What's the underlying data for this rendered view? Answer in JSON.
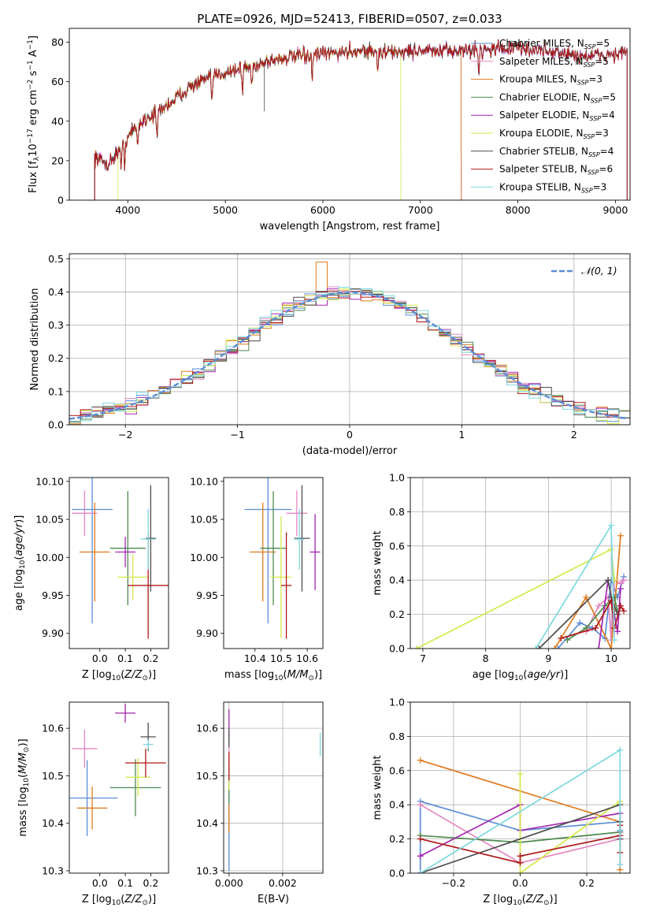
{
  "figure": {
    "title": "PLATE=0926, MJD=52413, FIBERID=0507, z=0.033"
  },
  "colors": {
    "Chabrier MILES": "#5b8dd6",
    "Salpeter MILES": "#e487c2",
    "Kroupa MILES": "#e07b1f",
    "Chabrier ELODIE": "#4e8a4e",
    "Salpeter ELODIE": "#a326b0",
    "Kroupa ELODIE": "#d4e84a",
    "Chabrier STELIB": "#4d4d4d",
    "Salpeter STELIB": "#b01818",
    "Kroupa STELIB": "#7fd7e0"
  },
  "chart_data": [
    {
      "id": "spectrum",
      "type": "line",
      "title": "PLATE=0926, MJD=52413, FIBERID=0507, z=0.033",
      "xlabel": "wavelength [Angstrom, rest frame]",
      "ylabel": "Flux [f_λ10^-17 erg cm^-2 s^-1 A^-1]",
      "xlim": [
        3400,
        9150
      ],
      "ylim": [
        0,
        87
      ],
      "xticks": [
        4000,
        5000,
        6000,
        7000,
        8000,
        9000
      ],
      "yticks": [
        0,
        20,
        40,
        60,
        80
      ],
      "grid": false,
      "legend_position": "top-right",
      "legend": [
        {
          "label": "Chabrier MILES, N_SSP=5",
          "base": "Chabrier MILES, N",
          "sub": "SSP",
          "tail": "=5"
        },
        {
          "label": "Salpeter MILES, N_SSP=5",
          "base": "Salpeter MILES, N",
          "sub": "SSP",
          "tail": "=5"
        },
        {
          "label": "Kroupa MILES, N_SSP=3",
          "base": "Kroupa MILES, N",
          "sub": "SSP",
          "tail": "=3"
        },
        {
          "label": "Chabrier ELODIE, N_SSP=5",
          "base": "Chabrier ELODIE, N",
          "sub": "SSP",
          "tail": "=5"
        },
        {
          "label": "Salpeter ELODIE, N_SSP=4",
          "base": "Salpeter ELODIE, N",
          "sub": "SSP",
          "tail": "=4"
        },
        {
          "label": "Kroupa ELODIE, N_SSP=3",
          "base": "Kroupa ELODIE, N",
          "sub": "SSP",
          "tail": "=3"
        },
        {
          "label": "Chabrier STELIB, N_SSP=4",
          "base": "Chabrier STELIB, N",
          "sub": "SSP",
          "tail": "=4"
        },
        {
          "label": "Salpeter STELIB, N_SSP=6",
          "base": "Salpeter STELIB, N",
          "sub": "SSP",
          "tail": "=6"
        },
        {
          "label": "Kroupa STELIB, N_SSP=3",
          "base": "Kroupa STELIB, N",
          "sub": "SSP",
          "tail": "=3"
        }
      ],
      "continuum": [
        [
          3660,
          22
        ],
        [
          3800,
          18
        ],
        [
          3900,
          25
        ],
        [
          4000,
          32
        ],
        [
          4100,
          38
        ],
        [
          4200,
          42
        ],
        [
          4300,
          44
        ],
        [
          4400,
          48
        ],
        [
          4500,
          52
        ],
        [
          4600,
          56
        ],
        [
          4700,
          59
        ],
        [
          4800,
          61
        ],
        [
          4900,
          63
        ],
        [
          5000,
          65
        ],
        [
          5100,
          66
        ],
        [
          5200,
          67
        ],
        [
          5300,
          68
        ],
        [
          5400,
          70
        ],
        [
          5500,
          71
        ],
        [
          5600,
          72
        ],
        [
          5800,
          73
        ],
        [
          6000,
          74
        ],
        [
          6200,
          75
        ],
        [
          6400,
          76
        ],
        [
          6600,
          75
        ],
        [
          6800,
          75
        ],
        [
          7000,
          76
        ],
        [
          7200,
          75
        ],
        [
          7400,
          76
        ],
        [
          7600,
          76
        ],
        [
          7800,
          77
        ],
        [
          8000,
          77
        ],
        [
          8200,
          76
        ],
        [
          8400,
          75
        ],
        [
          8600,
          73
        ],
        [
          8800,
          73
        ],
        [
          9000,
          74
        ],
        [
          9120,
          75
        ]
      ],
      "model_ranges": {
        "Chabrier MILES": [
          3660,
          7420
        ],
        "Salpeter MILES": [
          3660,
          7420
        ],
        "Kroupa MILES": [
          3660,
          7420
        ],
        "Kroupa ELODIE": [
          3900,
          6800
        ],
        "Chabrier ELODIE": [
          3660,
          9120
        ],
        "Salpeter ELODIE": [
          3660,
          9120
        ],
        "Chabrier STELIB": [
          3660,
          9120
        ],
        "Salpeter STELIB": [
          3660,
          9120
        ],
        "Kroupa STELIB": [
          3660,
          9120
        ]
      }
    },
    {
      "id": "residuals",
      "type": "step",
      "xlabel": "(data-model)/error",
      "ylabel": "Normed distribution",
      "xlim": [
        -2.5,
        2.5
      ],
      "ylim": [
        0,
        0.515
      ],
      "xticks": [
        -2,
        -1,
        0,
        1,
        2
      ],
      "yticks": [
        0.0,
        0.1,
        0.2,
        0.3,
        0.4,
        0.5
      ],
      "grid": true,
      "bin_width": 0.1,
      "reference_curve": {
        "name": "N(0,1)",
        "label": "𝒩(0, 1)",
        "sigma": 1.0,
        "color": "#5b8dd6"
      },
      "spikes": [
        {
          "series": "Kroupa MILES",
          "x": -0.25,
          "y": 0.49
        }
      ]
    },
    {
      "id": "age_vs_Z",
      "type": "errorbar",
      "xlabel": "Z [log10(Z/Z☉)]",
      "ylabel": "age [log10(age/yr)]",
      "xlim": [
        -0.12,
        0.27
      ],
      "ylim": [
        9.88,
        10.105
      ],
      "xticks": [
        0.0,
        0.1,
        0.2
      ],
      "yticks": [
        9.9,
        9.95,
        10.0,
        10.05,
        10.1
      ],
      "points": [
        {
          "series": "Chabrier MILES",
          "x": -0.03,
          "xerr": 0.08,
          "y": 10.063,
          "yerr": 0.15
        },
        {
          "series": "Salpeter MILES",
          "x": -0.06,
          "xerr": 0.05,
          "y": 10.058,
          "yerr": 0.03
        },
        {
          "series": "Kroupa MILES",
          "x": -0.02,
          "xerr": 0.06,
          "y": 10.007,
          "yerr": 0.065
        },
        {
          "series": "Chabrier ELODIE",
          "x": 0.11,
          "xerr": 0.07,
          "y": 10.012,
          "yerr": 0.075
        },
        {
          "series": "Salpeter ELODIE",
          "x": 0.1,
          "xerr": 0.04,
          "y": 10.007,
          "yerr": 0.02
        },
        {
          "series": "Kroupa ELODIE",
          "x": 0.13,
          "xerr": 0.06,
          "y": 9.974,
          "yerr": 0.03
        },
        {
          "series": "Chabrier STELIB",
          "x": 0.2,
          "xerr": 0.02,
          "y": 10.025,
          "yerr": 0.07
        },
        {
          "series": "Salpeter STELIB",
          "x": 0.19,
          "xerr": 0.08,
          "y": 9.963,
          "yerr": 0.07
        },
        {
          "series": "Kroupa STELIB",
          "x": 0.19,
          "xerr": 0.03,
          "y": 10.024,
          "yerr": 0.04
        }
      ]
    },
    {
      "id": "age_vs_mass",
      "type": "errorbar",
      "xlabel": "mass [log10(M/M☉)]",
      "ylabel": "",
      "xlim": [
        10.28,
        10.66
      ],
      "ylim": [
        9.88,
        10.105
      ],
      "xticks": [
        10.4,
        10.5,
        10.6
      ],
      "yticks": [
        9.9,
        9.95,
        10.0,
        10.05,
        10.1
      ],
      "points": [
        {
          "series": "Chabrier MILES",
          "x": 10.45,
          "xerr": 0.09,
          "y": 10.063,
          "yerr": 0.15
        },
        {
          "series": "Salpeter MILES",
          "x": 10.56,
          "xerr": 0.04,
          "y": 10.058,
          "yerr": 0.03
        },
        {
          "series": "Kroupa MILES",
          "x": 10.43,
          "xerr": 0.05,
          "y": 10.007,
          "yerr": 0.065
        },
        {
          "series": "Chabrier ELODIE",
          "x": 10.47,
          "xerr": 0.05,
          "y": 10.012,
          "yerr": 0.075
        },
        {
          "series": "Salpeter ELODIE",
          "x": 10.63,
          "xerr": 0.02,
          "y": 10.007,
          "yerr": 0.05
        },
        {
          "series": "Kroupa ELODIE",
          "x": 10.5,
          "xerr": 0.04,
          "y": 9.974,
          "yerr": 0.08
        },
        {
          "series": "Chabrier STELIB",
          "x": 10.58,
          "xerr": 0.03,
          "y": 10.025,
          "yerr": 0.07
        },
        {
          "series": "Salpeter STELIB",
          "x": 10.52,
          "xerr": 0.02,
          "y": 9.963,
          "yerr": 0.07
        },
        {
          "series": "Kroupa STELIB",
          "x": 10.57,
          "xerr": 0.02,
          "y": 10.024,
          "yerr": 0.04
        }
      ]
    },
    {
      "id": "weight_vs_age",
      "type": "line",
      "xlabel": "age [log10(age/yr)]",
      "ylabel": "mass weight",
      "xlim": [
        6.8,
        10.3
      ],
      "ylim": [
        0,
        1.0
      ],
      "xticks": [
        7,
        8,
        9,
        10
      ],
      "yticks": [
        0.0,
        0.2,
        0.4,
        0.6,
        0.8,
        1.0
      ],
      "grid": true,
      "series": [
        {
          "name": "Chabrier MILES",
          "x": [
            9.15,
            9.5,
            9.7,
            9.9,
            10.0,
            10.1,
            10.2
          ],
          "y": [
            0.0,
            0.15,
            0.12,
            0.06,
            0.4,
            0.3,
            0.42
          ]
        },
        {
          "name": "Salpeter MILES",
          "x": [
            9.6,
            9.8,
            9.95,
            10.0,
            10.05,
            10.15,
            10.2
          ],
          "y": [
            0.1,
            0.25,
            0.3,
            0.05,
            0.4,
            0.38,
            0.4
          ]
        },
        {
          "name": "Kroupa MILES",
          "x": [
            9.1,
            9.6,
            10.0,
            10.15
          ],
          "y": [
            0.0,
            0.3,
            0.0,
            0.66
          ]
        },
        {
          "name": "Chabrier ELODIE",
          "x": [
            9.3,
            9.6,
            9.9,
            10.05,
            10.1
          ],
          "y": [
            0.05,
            0.12,
            0.25,
            0.3,
            0.22
          ]
        },
        {
          "name": "Salpeter ELODIE",
          "x": [
            9.8,
            9.95,
            10.1,
            10.15
          ],
          "y": [
            0.0,
            0.4,
            0.1,
            0.35
          ]
        },
        {
          "name": "Kroupa ELODIE",
          "x": [
            6.9,
            10.0,
            10.05
          ],
          "y": [
            0.0,
            0.58,
            0.4
          ]
        },
        {
          "name": "Chabrier STELIB",
          "x": [
            8.85,
            9.95,
            10.0,
            10.1
          ],
          "y": [
            0.0,
            0.4,
            0.3,
            0.2
          ]
        },
        {
          "name": "Salpeter STELIB",
          "x": [
            9.2,
            9.75,
            10.0,
            10.05,
            10.15,
            10.2
          ],
          "y": [
            0.06,
            0.12,
            0.28,
            0.12,
            0.25,
            0.22
          ]
        },
        {
          "name": "Kroupa STELIB",
          "x": [
            8.8,
            10.0,
            10.05
          ],
          "y": [
            0.0,
            0.72,
            0.05
          ]
        }
      ]
    },
    {
      "id": "mass_vs_Z",
      "type": "errorbar",
      "xlabel": "Z [log10(Z/Z☉)]",
      "ylabel": "mass [log10(M/M☉)]",
      "xlim": [
        -0.12,
        0.27
      ],
      "ylim": [
        10.295,
        10.655
      ],
      "xticks": [
        0.0,
        0.1,
        0.2
      ],
      "yticks": [
        10.3,
        10.4,
        10.5,
        10.6
      ],
      "points": [
        {
          "series": "Chabrier MILES",
          "x": -0.05,
          "xerr": 0.12,
          "y": 10.453,
          "yerr": 0.08
        },
        {
          "series": "Salpeter MILES",
          "x": -0.06,
          "xerr": 0.05,
          "y": 10.557,
          "yerr": 0.04
        },
        {
          "series": "Kroupa MILES",
          "x": -0.03,
          "xerr": 0.06,
          "y": 10.432,
          "yerr": 0.045
        },
        {
          "series": "Chabrier ELODIE",
          "x": 0.14,
          "xerr": 0.1,
          "y": 10.475,
          "yerr": 0.06
        },
        {
          "series": "Salpeter ELODIE",
          "x": 0.1,
          "xerr": 0.04,
          "y": 10.632,
          "yerr": 0.02
        },
        {
          "series": "Kroupa ELODIE",
          "x": 0.15,
          "xerr": 0.05,
          "y": 10.497,
          "yerr": 0.04
        },
        {
          "series": "Chabrier STELIB",
          "x": 0.19,
          "xerr": 0.03,
          "y": 10.582,
          "yerr": 0.03
        },
        {
          "series": "Salpeter STELIB",
          "x": 0.18,
          "xerr": 0.08,
          "y": 10.527,
          "yerr": 0.03
        },
        {
          "series": "Kroupa STELIB",
          "x": 0.19,
          "xerr": 0.02,
          "y": 10.566,
          "yerr": 0.01
        }
      ]
    },
    {
      "id": "mass_vs_ebv",
      "type": "errorbar",
      "xlabel": "E(B-V)",
      "ylabel": "",
      "xlim": [
        -0.0002,
        0.0035
      ],
      "ylim": [
        10.295,
        10.655
      ],
      "xticks": [
        0.0,
        0.002
      ],
      "yticks": [
        10.3,
        10.4,
        10.5,
        10.6
      ],
      "grid": true,
      "points": [
        {
          "series": "Chabrier MILES",
          "x": 0.0,
          "xerr": 0.0,
          "y": 10.42,
          "yerr": 0.12
        },
        {
          "series": "Salpeter MILES",
          "x": 0.0,
          "xerr": 0.0,
          "y": 10.557,
          "yerr": 0.04
        },
        {
          "series": "Kroupa MILES",
          "x": 0.0,
          "xerr": 0.0,
          "y": 10.41,
          "yerr": 0.03
        },
        {
          "series": "Chabrier ELODIE",
          "x": 0.0,
          "xerr": 0.0,
          "y": 10.47,
          "yerr": 0.03
        },
        {
          "series": "Salpeter ELODIE",
          "x": 0.0,
          "xerr": 0.0,
          "y": 10.61,
          "yerr": 0.03
        },
        {
          "series": "Kroupa ELODIE",
          "x": 0.0,
          "xerr": 0.0,
          "y": 10.49,
          "yerr": 0.02
        },
        {
          "series": "Chabrier STELIB",
          "x": 0.0,
          "xerr": 0.0,
          "y": 10.58,
          "yerr": 0.02
        },
        {
          "series": "Salpeter STELIB",
          "x": 0.0,
          "xerr": 0.0,
          "y": 10.52,
          "yerr": 0.03
        },
        {
          "series": "Kroupa STELIB",
          "x": 0.0034,
          "xerr": 0.0,
          "y": 10.566,
          "yerr": 0.025
        }
      ]
    },
    {
      "id": "weight_vs_Z",
      "type": "line",
      "xlabel": "Z [log10(Z/Z☉)]",
      "ylabel": "mass weight",
      "xlim": [
        -0.33,
        0.33
      ],
      "ylim": [
        0,
        1.0
      ],
      "xticks": [
        -0.2,
        0.0,
        0.2
      ],
      "yticks": [
        0.0,
        0.2,
        0.4,
        0.6,
        0.8,
        1.0
      ],
      "grid": true,
      "series": [
        {
          "name": "Chabrier MILES",
          "x": [
            -0.3,
            -0.3,
            0.0,
            0.3,
            0.3
          ],
          "y": [
            0.0,
            0.42,
            0.25,
            0.3,
            0.25
          ]
        },
        {
          "name": "Salpeter MILES",
          "x": [
            -0.3,
            0.0,
            0.3,
            0.3,
            0.3
          ],
          "y": [
            0.4,
            0.06,
            0.2,
            0.05,
            0.3
          ]
        },
        {
          "name": "Kroupa MILES",
          "x": [
            -0.3,
            0.3,
            0.3
          ],
          "y": [
            0.66,
            0.3,
            0.02
          ]
        },
        {
          "name": "Chabrier ELODIE",
          "x": [
            -0.3,
            0.0,
            0.3,
            0.3
          ],
          "y": [
            0.22,
            0.18,
            0.24,
            0.3
          ]
        },
        {
          "name": "Salpeter ELODIE",
          "x": [
            -0.3,
            0.0,
            0.0,
            0.3,
            0.3
          ],
          "y": [
            0.1,
            0.4,
            0.25,
            0.35,
            0.2
          ]
        },
        {
          "name": "Kroupa ELODIE",
          "x": [
            0.0,
            0.0,
            0.3,
            0.3
          ],
          "y": [
            0.58,
            0.0,
            0.42,
            0.4
          ]
        },
        {
          "name": "Chabrier STELIB",
          "x": [
            -0.3,
            0.3,
            0.3,
            0.3
          ],
          "y": [
            0.0,
            0.4,
            0.3,
            0.2
          ]
        },
        {
          "name": "Salpeter STELIB",
          "x": [
            -0.3,
            0.0,
            0.0,
            0.3,
            0.3,
            0.3
          ],
          "y": [
            0.2,
            0.06,
            0.1,
            0.22,
            0.28,
            0.12
          ]
        },
        {
          "name": "Kroupa STELIB",
          "x": [
            -0.3,
            0.3,
            0.3
          ],
          "y": [
            0.0,
            0.72,
            0.05
          ]
        }
      ]
    }
  ]
}
